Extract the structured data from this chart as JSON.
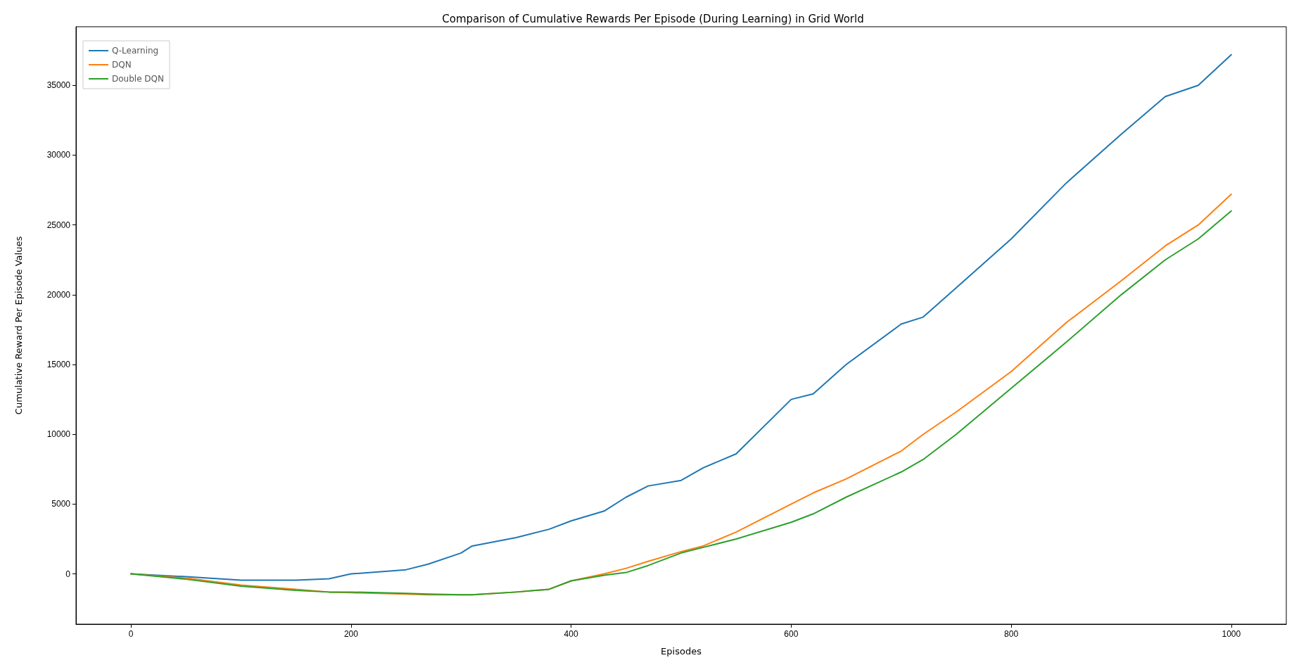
{
  "chart_data": {
    "type": "line",
    "title": "Comparison of Cumulative Rewards Per Episode (During Learning) in Grid World",
    "xlabel": "Episodes",
    "ylabel": "Cumulative Reward Per Episode Values",
    "x": [
      0,
      50,
      100,
      150,
      180,
      200,
      250,
      270,
      300,
      310,
      350,
      380,
      400,
      430,
      450,
      470,
      500,
      520,
      550,
      600,
      620,
      650,
      700,
      720,
      750,
      800,
      850,
      900,
      940,
      970,
      1000
    ],
    "series": [
      {
        "name": "Q-Learning",
        "color": "#1f77b4",
        "values": [
          0,
          -200,
          -450,
          -450,
          -350,
          0,
          300,
          700,
          1500,
          2000,
          2600,
          3200,
          3800,
          4500,
          5500,
          6300,
          6700,
          7600,
          8600,
          12500,
          12900,
          15000,
          17900,
          18400,
          20500,
          24000,
          28000,
          31500,
          34200,
          35000,
          37200
        ]
      },
      {
        "name": "DQN",
        "color": "#ff7f0e",
        "values": [
          0,
          -300,
          -800,
          -1100,
          -1300,
          -1350,
          -1450,
          -1500,
          -1500,
          -1500,
          -1300,
          -1100,
          -500,
          0,
          400,
          900,
          1600,
          2000,
          3000,
          5000,
          5800,
          6800,
          8800,
          10000,
          11600,
          14500,
          18000,
          21000,
          23500,
          25000,
          27200
        ]
      },
      {
        "name": "Double DQN",
        "color": "#2ca02c",
        "values": [
          0,
          -380,
          -880,
          -1180,
          -1300,
          -1300,
          -1400,
          -1450,
          -1500,
          -1500,
          -1300,
          -1100,
          -500,
          -100,
          100,
          600,
          1500,
          1900,
          2500,
          3700,
          4300,
          5500,
          7300,
          8200,
          10000,
          13300,
          16600,
          20000,
          22500,
          24000,
          26000
        ]
      }
    ],
    "xlim": [
      -50,
      1050
    ],
    "ylim": [
      -3600,
      39200
    ],
    "xticks": [
      0,
      200,
      400,
      600,
      800,
      1000
    ],
    "yticks": [
      0,
      5000,
      10000,
      15000,
      20000,
      25000,
      30000,
      35000
    ],
    "grid": false,
    "legend": "top left",
    "marker": "none",
    "line_style": "solid"
  }
}
